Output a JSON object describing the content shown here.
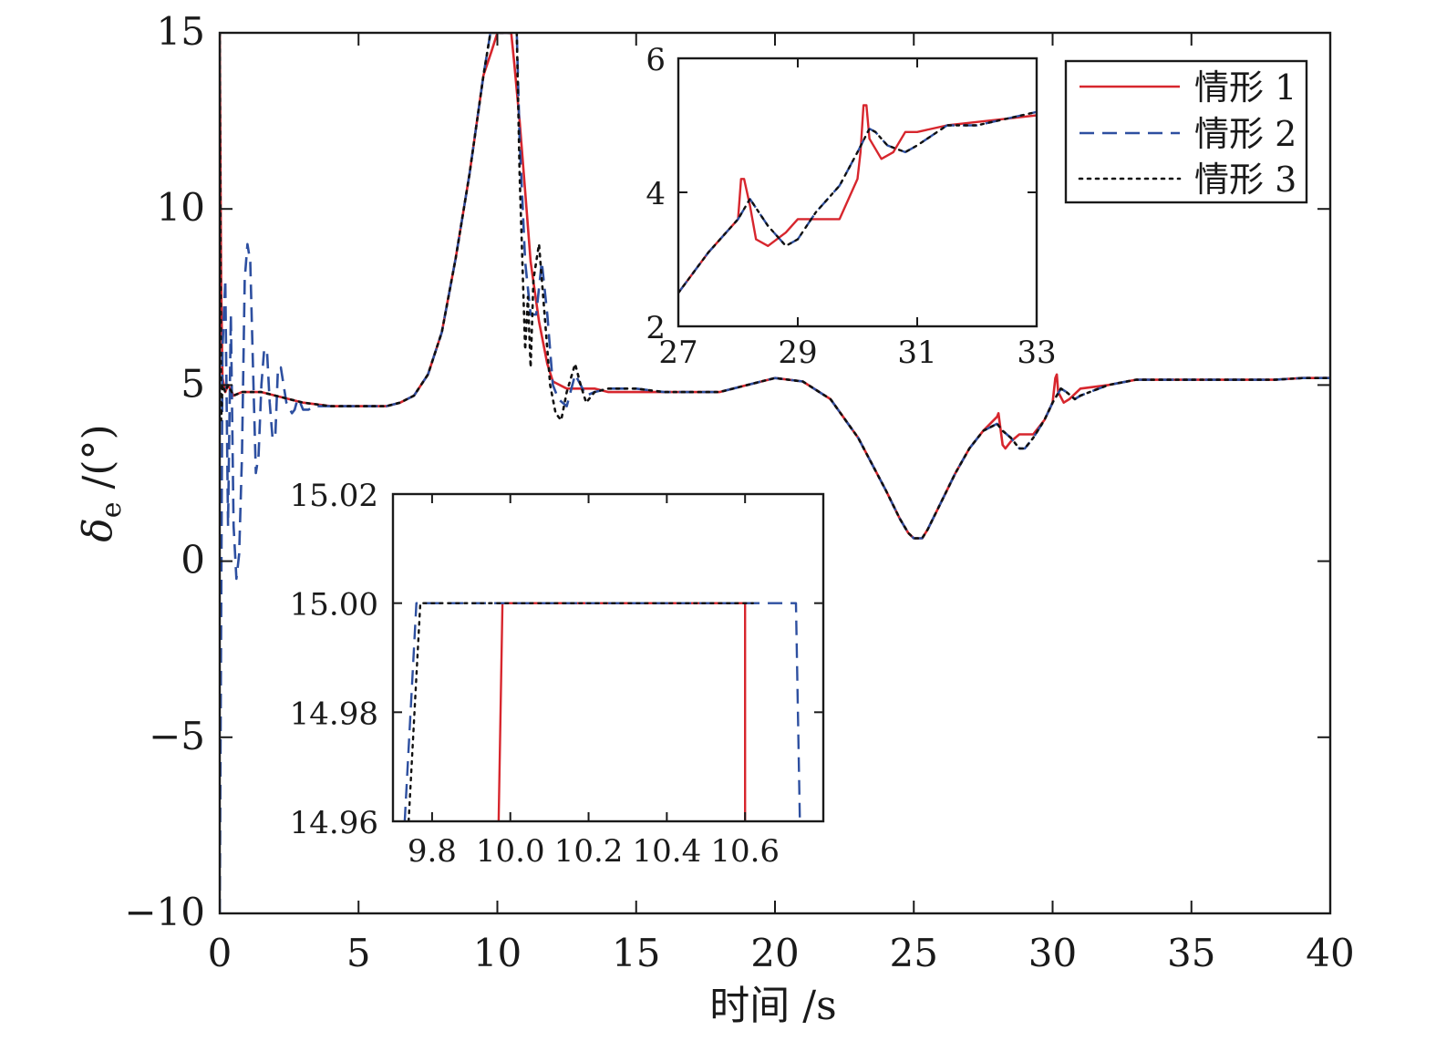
{
  "chart_data": {
    "type": "line",
    "title": "",
    "xlabel": "时间 /s",
    "ylabel_main": "δ",
    "ylabel_sub": "e",
    "ylabel_unit": " /(°)",
    "xlim": [
      0,
      40
    ],
    "ylim": [
      -10,
      15
    ],
    "xticks": [
      0,
      5,
      10,
      15,
      20,
      25,
      30,
      35,
      40
    ],
    "yticks": [
      -10,
      -5,
      0,
      5,
      10,
      15
    ],
    "ytick_labels": [
      "−10",
      "−5",
      "0",
      "5",
      "10",
      "15"
    ],
    "grid": false,
    "legend_position": "top-right",
    "colors": {
      "series1": "#d7262d",
      "series2": "#2d4fa0",
      "series3": "#111111"
    },
    "series": [
      {
        "name": "情形 1",
        "style": "solid",
        "x": [
          0,
          0.05,
          0.1,
          0.2,
          0.3,
          0.5,
          0.8,
          1.2,
          1.5,
          2,
          3,
          4,
          5,
          6,
          6.5,
          7,
          7.5,
          8,
          8.5,
          9,
          9.5,
          9.8,
          10,
          10.3,
          10.5,
          10.6,
          10.8,
          11,
          11.2,
          11.5,
          11.8,
          12,
          12.5,
          13,
          13.5,
          14,
          15,
          16,
          17,
          18,
          19,
          20,
          21,
          22,
          23,
          24,
          24.5,
          24.8,
          25,
          25.3,
          25.5,
          26,
          26.5,
          27,
          27.5,
          28,
          28.05,
          28.1,
          28.2,
          28.3,
          28.5,
          28.8,
          29,
          29.3,
          29.7,
          30,
          30.1,
          30.15,
          30.2,
          30.4,
          30.6,
          31,
          32,
          33,
          34,
          35,
          36,
          37,
          38,
          39,
          40
        ],
        "y": [
          15,
          8,
          5.2,
          4.8,
          5,
          4.7,
          4.8,
          4.8,
          4.8,
          4.7,
          4.5,
          4.4,
          4.4,
          4.4,
          4.5,
          4.7,
          5.3,
          6.5,
          8.6,
          11,
          13.8,
          14.5,
          15,
          15,
          15,
          14.2,
          12.5,
          10.5,
          8.5,
          6.8,
          5.6,
          5.1,
          4.9,
          4.9,
          4.9,
          4.8,
          4.8,
          4.8,
          4.8,
          4.8,
          5,
          5.2,
          5.1,
          4.6,
          3.5,
          2.0,
          1.2,
          0.8,
          0.65,
          0.65,
          0.9,
          1.7,
          2.5,
          3.2,
          3.7,
          4.1,
          4.2,
          3.9,
          3.3,
          3.2,
          3.4,
          3.6,
          3.6,
          3.6,
          4.0,
          4.5,
          5.2,
          5.3,
          4.8,
          4.5,
          4.6,
          4.9,
          5.0,
          5.15,
          5.15,
          5.15,
          5.15,
          5.15,
          5.15,
          5.2,
          5.2
        ]
      },
      {
        "name": "情形 2",
        "style": "dashed",
        "x": [
          0,
          0.1,
          0.2,
          0.3,
          0.4,
          0.5,
          0.6,
          0.7,
          0.8,
          0.9,
          1.0,
          1.1,
          1.2,
          1.3,
          1.4,
          1.5,
          1.6,
          1.7,
          1.8,
          1.9,
          2.0,
          2.1,
          2.2,
          2.4,
          2.6,
          2.7,
          2.8,
          2.9,
          3.0,
          3.2,
          3.4,
          3.6,
          3.8,
          4.0,
          4.2,
          4.4,
          4.6,
          5,
          6,
          6.5,
          7,
          7.5,
          8,
          8.5,
          9,
          9.5,
          9.75,
          10,
          10.5,
          10.7,
          10.8,
          11,
          11.2,
          11.4,
          11.6,
          11.8,
          12.0,
          12.2,
          12.5,
          12.8,
          13,
          13.2,
          13.5,
          14,
          15,
          16,
          17,
          18,
          19,
          20,
          21,
          22,
          23,
          24,
          24.5,
          24.8,
          25,
          25.3,
          25.5,
          26,
          26.5,
          27,
          27.5,
          28,
          28.2,
          28.5,
          28.8,
          29,
          29.3,
          29.7,
          30,
          30.3,
          30.5,
          30.8,
          31,
          32,
          33,
          34,
          35,
          36,
          37,
          38,
          39,
          40
        ],
        "y": [
          -10,
          6,
          8,
          1,
          7,
          1,
          -0.5,
          0.2,
          3,
          8,
          9,
          8.5,
          5.5,
          2.5,
          3.0,
          5.0,
          6.0,
          6.0,
          4.5,
          3.5,
          3.5,
          5.5,
          5.5,
          4.5,
          4.2,
          4.3,
          4.6,
          4.5,
          4.3,
          4.3,
          4.4,
          4.4,
          4.4,
          4.4,
          4.4,
          4.4,
          4.4,
          4.4,
          4.4,
          4.5,
          4.7,
          5.3,
          6.5,
          8.6,
          11,
          13.8,
          15,
          15,
          15,
          15,
          12.0,
          8.5,
          7.0,
          7.0,
          8.5,
          7.0,
          5.0,
          4.6,
          4.4,
          5.3,
          5.0,
          4.7,
          4.8,
          4.9,
          4.9,
          4.8,
          4.8,
          4.8,
          5,
          5.2,
          5.1,
          4.6,
          3.5,
          2.0,
          1.2,
          0.8,
          0.65,
          0.65,
          0.9,
          1.7,
          2.5,
          3.2,
          3.7,
          3.9,
          3.7,
          3.5,
          3.2,
          3.2,
          3.5,
          4.0,
          4.5,
          4.9,
          4.8,
          4.6,
          4.7,
          5.0,
          5.15,
          5.15,
          5.15,
          5.15,
          5.15,
          5.15,
          5.2,
          5.2
        ]
      },
      {
        "name": "情形 3",
        "style": "dotted",
        "x": [
          0,
          0.05,
          0.1,
          0.2,
          0.3,
          0.5,
          0.8,
          1.2,
          1.5,
          2,
          3,
          4,
          5,
          6,
          6.5,
          7,
          7.5,
          8,
          8.5,
          9,
          9.5,
          9.75,
          10,
          10.5,
          10.7,
          10.8,
          11,
          11.1,
          11.2,
          11.3,
          11.5,
          11.7,
          11.9,
          12.1,
          12.3,
          12.5,
          12.8,
          13,
          13.2,
          13.5,
          14,
          15,
          16,
          17,
          18,
          19,
          20,
          21,
          22,
          23,
          24,
          24.5,
          24.8,
          25,
          25.3,
          25.5,
          26,
          26.5,
          27,
          27.5,
          28,
          28.2,
          28.5,
          28.8,
          29,
          29.3,
          29.7,
          30,
          30.3,
          30.5,
          30.8,
          31,
          32,
          33,
          34,
          35,
          36,
          37,
          38,
          39,
          40
        ],
        "y": [
          15,
          4,
          5.0,
          4.8,
          5,
          4.7,
          4.8,
          4.8,
          4.8,
          4.7,
          4.5,
          4.4,
          4.4,
          4.4,
          4.5,
          4.7,
          5.3,
          6.5,
          8.6,
          11,
          13.8,
          15,
          15,
          15,
          15,
          11.0,
          6.0,
          7.5,
          5.5,
          8.0,
          9.0,
          7.0,
          5.0,
          4.2,
          4.0,
          4.8,
          5.6,
          5.0,
          4.5,
          4.8,
          4.9,
          4.9,
          4.8,
          4.8,
          4.8,
          5,
          5.2,
          5.1,
          4.6,
          3.5,
          2.0,
          1.2,
          0.8,
          0.65,
          0.65,
          0.9,
          1.7,
          2.5,
          3.2,
          3.7,
          3.9,
          3.7,
          3.5,
          3.2,
          3.2,
          3.5,
          4.0,
          4.5,
          4.9,
          4.8,
          4.6,
          4.7,
          5.0,
          5.15,
          5.15,
          5.15,
          5.15,
          5.15,
          5.15,
          5.2,
          5.2
        ]
      }
    ],
    "inset_top_right": {
      "xlim": [
        27,
        33
      ],
      "ylim": [
        2,
        6
      ],
      "xticks": [
        27,
        29,
        31,
        33
      ],
      "yticks": [
        2,
        4,
        6
      ],
      "series": [
        {
          "x": [
            27,
            27.5,
            28,
            28.05,
            28.1,
            28.2,
            28.3,
            28.5,
            28.8,
            29,
            29.3,
            29.7,
            30,
            30.05,
            30.1,
            30.15,
            30.2,
            30.4,
            30.6,
            30.8,
            31,
            31.5,
            32,
            32.5,
            33
          ],
          "y": [
            2.5,
            3.1,
            3.6,
            4.2,
            4.2,
            3.8,
            3.3,
            3.2,
            3.4,
            3.6,
            3.6,
            3.6,
            4.2,
            4.6,
            5.3,
            5.3,
            4.8,
            4.5,
            4.6,
            4.9,
            4.9,
            5.0,
            5.05,
            5.1,
            5.15
          ]
        },
        {
          "x": [
            27,
            27.5,
            28,
            28.2,
            28.5,
            28.8,
            29,
            29.3,
            29.7,
            30,
            30.2,
            30.3,
            30.5,
            30.8,
            31,
            31.5,
            32,
            32.5,
            33
          ],
          "y": [
            2.5,
            3.1,
            3.6,
            3.9,
            3.5,
            3.2,
            3.3,
            3.7,
            4.1,
            4.6,
            4.95,
            4.9,
            4.7,
            4.6,
            4.7,
            5.0,
            5.0,
            5.1,
            5.2
          ]
        },
        {
          "x": [
            27,
            27.5,
            28,
            28.2,
            28.5,
            28.8,
            29,
            29.3,
            29.7,
            30,
            30.2,
            30.3,
            30.5,
            30.8,
            31,
            31.5,
            32,
            32.5,
            33
          ],
          "y": [
            2.5,
            3.1,
            3.6,
            3.9,
            3.5,
            3.2,
            3.3,
            3.7,
            4.1,
            4.6,
            4.95,
            4.9,
            4.7,
            4.6,
            4.7,
            5.0,
            5.0,
            5.1,
            5.2
          ]
        }
      ]
    },
    "inset_bottom": {
      "xlim": [
        9.7,
        10.8
      ],
      "ylim": [
        14.96,
        15.02
      ],
      "xticks": [
        9.8,
        10.0,
        10.2,
        10.4,
        10.6
      ],
      "xtick_labels": [
        "9.8",
        "10.0",
        "10.2",
        "10.4",
        "10.6"
      ],
      "yticks": [
        14.96,
        14.98,
        15.0,
        15.02
      ],
      "ytick_labels": [
        "14.96",
        "14.98",
        "15.00",
        "15.02"
      ],
      "series": [
        {
          "x": [
            9.97,
            9.98,
            10.6,
            10.6
          ],
          "y": [
            14.96,
            15.0,
            15.0,
            14.96
          ]
        },
        {
          "x": [
            9.73,
            9.76,
            10.73,
            10.74
          ],
          "y": [
            14.96,
            15.0,
            15.0,
            14.96
          ]
        },
        {
          "x": [
            9.74,
            9.77,
            10.62
          ],
          "y": [
            14.96,
            15.0,
            15.0
          ]
        }
      ]
    }
  }
}
